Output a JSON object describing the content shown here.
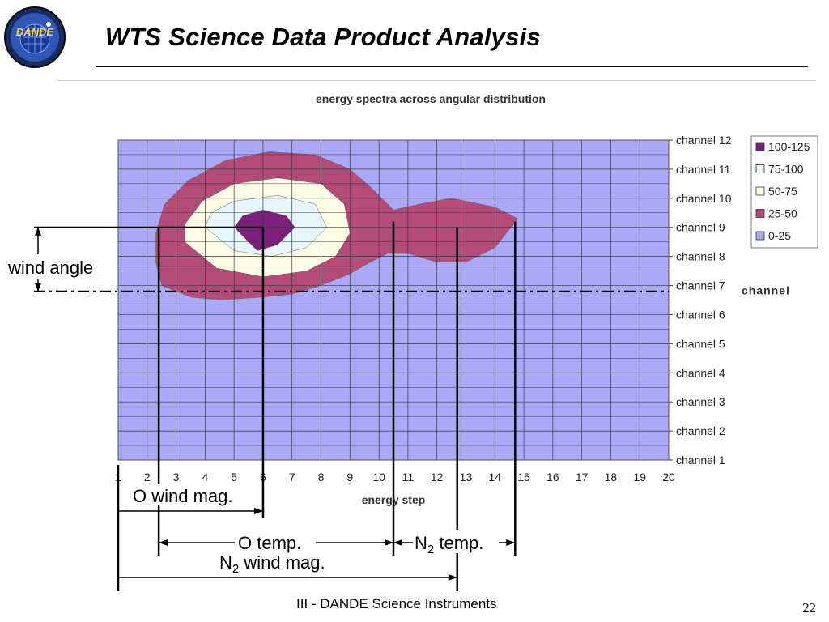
{
  "slide": {
    "title": "WTS Science Data Product Analysis",
    "footer": "III - DANDE Science Instruments",
    "page_number": "22"
  },
  "logo": {
    "name": "DANDE",
    "icon": "dande-mission-logo"
  },
  "chart_data": {
    "type": "contour",
    "title": "energy spectra across angular distribution",
    "xlabel": "energy step",
    "ylabel": "",
    "right_axis_label": "channel",
    "x": [
      1,
      2,
      3,
      4,
      5,
      6,
      7,
      8,
      9,
      10,
      11,
      12,
      13,
      14,
      15,
      16,
      17,
      18,
      19,
      20
    ],
    "y_categories": [
      "channel 1",
      "channel 2",
      "channel 3",
      "channel 4",
      "channel 5",
      "channel 6",
      "channel 7",
      "channel 8",
      "channel 9",
      "channel 10",
      "channel 11",
      "channel 12"
    ],
    "legend": [
      {
        "label": "100-125",
        "color": "#7b1f7d"
      },
      {
        "label": "75-100",
        "color": "#e6f6fb"
      },
      {
        "label": "50-75",
        "color": "#fdfde6"
      },
      {
        "label": "25-50",
        "color": "#b34a7a"
      },
      {
        "label": "0-25",
        "color": "#a9a9f7"
      }
    ],
    "legend_position": "right",
    "grid": true,
    "contours": [
      {
        "range": "25-50",
        "points": [
          [
            2.5,
            7.0
          ],
          [
            3.5,
            6.6
          ],
          [
            4.5,
            6.5
          ],
          [
            6,
            6.6
          ],
          [
            7,
            6.7
          ],
          [
            8,
            7.0
          ],
          [
            9,
            7.4
          ],
          [
            9.7,
            7.8
          ],
          [
            10.3,
            8.1
          ],
          [
            11,
            8.1
          ],
          [
            12,
            7.8
          ],
          [
            13,
            7.8
          ],
          [
            14,
            8.3
          ],
          [
            14.8,
            9.3
          ],
          [
            14,
            9.7
          ],
          [
            12.5,
            10.0
          ],
          [
            11.4,
            9.8
          ],
          [
            10.5,
            9.6
          ],
          [
            9.7,
            10.4
          ],
          [
            9,
            11.0
          ],
          [
            7.8,
            11.5
          ],
          [
            6.2,
            11.6
          ],
          [
            4.7,
            11.3
          ],
          [
            3.4,
            10.6
          ],
          [
            2.6,
            9.8
          ],
          [
            2.3,
            8.8
          ],
          [
            2.3,
            7.8
          ]
        ]
      },
      {
        "range": "50-75",
        "points": [
          [
            3.3,
            8.5
          ],
          [
            4.4,
            7.6
          ],
          [
            6,
            7.3
          ],
          [
            7.5,
            7.5
          ],
          [
            8.5,
            8.0
          ],
          [
            9,
            8.8
          ],
          [
            8.8,
            9.8
          ],
          [
            8,
            10.5
          ],
          [
            6.5,
            10.7
          ],
          [
            5,
            10.5
          ],
          [
            3.9,
            9.9
          ],
          [
            3.3,
            9.1
          ]
        ]
      },
      {
        "range": "75-100",
        "points": [
          [
            4,
            9.0
          ],
          [
            5,
            8.2
          ],
          [
            6.3,
            8.0
          ],
          [
            7.5,
            8.3
          ],
          [
            8.2,
            9.0
          ],
          [
            7.8,
            9.8
          ],
          [
            6.5,
            10.1
          ],
          [
            5,
            9.9
          ],
          [
            4.2,
            9.5
          ]
        ]
      },
      {
        "range": "100-125",
        "points": [
          [
            5,
            9.0
          ],
          [
            5.8,
            8.2
          ],
          [
            6.5,
            8.4
          ],
          [
            7.1,
            9.0
          ],
          [
            6.8,
            9.4
          ],
          [
            6,
            9.6
          ],
          [
            5.3,
            9.4
          ]
        ]
      }
    ],
    "overlay": {
      "reference_label": "channel",
      "reference_channel": 6.8,
      "markers": [
        {
          "label": "O wind mag.",
          "from_step": 1,
          "to_step": 6.0
        },
        {
          "label": "O temp.",
          "from_step": 2.4,
          "to_step": 10.5
        },
        {
          "label": "N2 temp.",
          "from_step": 10.5,
          "to_step": 14.7
        },
        {
          "label": "N2 wind mag.",
          "from_step": 1,
          "to_step": 12.7
        }
      ],
      "wind_angle_label": "wind angle",
      "wind_angle_from_channel": 6.8,
      "wind_angle_to_channel": 9.0,
      "o_temp_label": "O temp.",
      "n2_temp_label_main": "N",
      "n2_temp_label_sub": "2",
      "n2_temp_label_rest": " temp.",
      "n2_wind_label_main": "N",
      "n2_wind_label_sub": "2",
      "n2_wind_label_rest": " wind mag.",
      "o_wind_label": "O wind mag."
    }
  }
}
